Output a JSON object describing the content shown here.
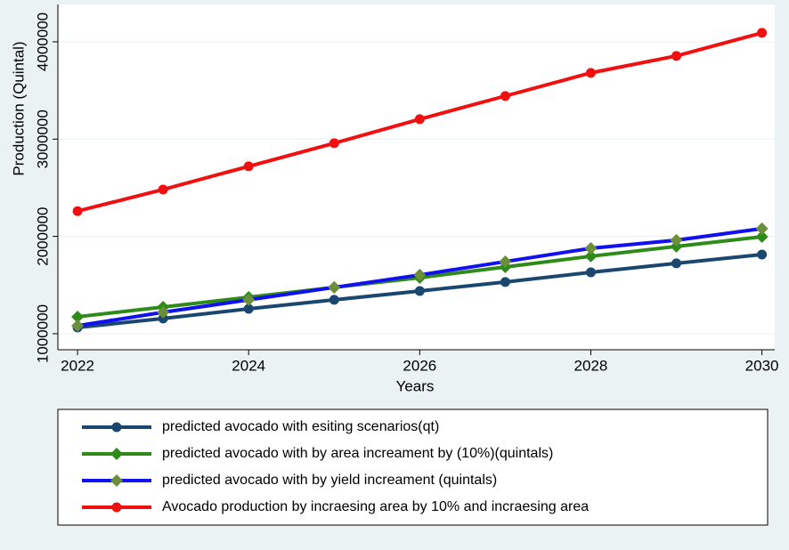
{
  "chart_data": {
    "type": "line",
    "x_label": "Years",
    "y_label": "Production (Quintal)",
    "x": [
      2022,
      2023,
      2024,
      2025,
      2026,
      2027,
      2028,
      2029,
      2030
    ],
    "xlim": [
      2021.77,
      2030.15
    ],
    "xticks": [
      2022,
      2024,
      2026,
      2028,
      2030
    ],
    "ylim": [
      835000,
      4384000
    ],
    "yticks": [
      1000000,
      2000000,
      3000000,
      4000000
    ],
    "grid": true,
    "series": [
      {
        "name": "predicted avocado with esiting scenarios(qt)",
        "color": "#1a476f",
        "marker_color": "#1a476f",
        "marker": "circle",
        "values": [
          1064000,
          1156000,
          1256000,
          1348000,
          1439000,
          1531000,
          1631000,
          1723000,
          1814000
        ]
      },
      {
        "name": "predicted avocado with by area increament by (10%)(quintals)",
        "color": "#2e8b1a",
        "marker_color": "#2e8b1a",
        "marker": "diamond",
        "values": [
          1174000,
          1274000,
          1375000,
          1476000,
          1576000,
          1686000,
          1796000,
          1897000,
          1997000
        ]
      },
      {
        "name": "predicted avocado with by yield  increament (quintals)",
        "color": "#1010f0",
        "marker_color": "#6b8e3a",
        "marker": "diamond",
        "values": [
          1082000,
          1220000,
          1348000,
          1476000,
          1604000,
          1741000,
          1878000,
          1961000,
          2080000
        ]
      },
      {
        "name": "Avocado production by incraesing area by 10% and incraesing area",
        "color": "#f01010",
        "marker_color": "#f01010",
        "marker": "circle",
        "values": [
          2260000,
          2482000,
          2720000,
          2958000,
          3205000,
          3443000,
          3681000,
          3855000,
          4092000
        ]
      }
    ]
  }
}
